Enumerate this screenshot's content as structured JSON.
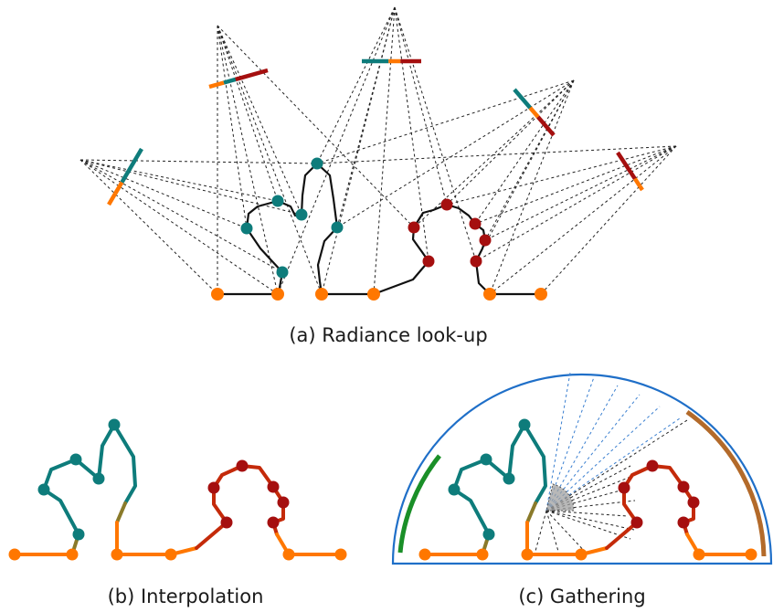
{
  "captions": {
    "a": "(a) Radiance look-up",
    "b": "(b) Interpolation",
    "c": "(c) Gathering"
  },
  "colors": {
    "teal": "#0e7c7b",
    "orange": "#ff7700",
    "dark_red": "#a50f0f",
    "line": "#111111",
    "dashed_ray": "#222222",
    "hemisphere": "#1f6fc8",
    "ray_blue": "#3a7fd0",
    "green_arc": "#1a8f28",
    "brown_arc": "#b36a2a",
    "gather_wedge": "#9a9a9a",
    "blend_olive": "#8a7a2a"
  }
}
